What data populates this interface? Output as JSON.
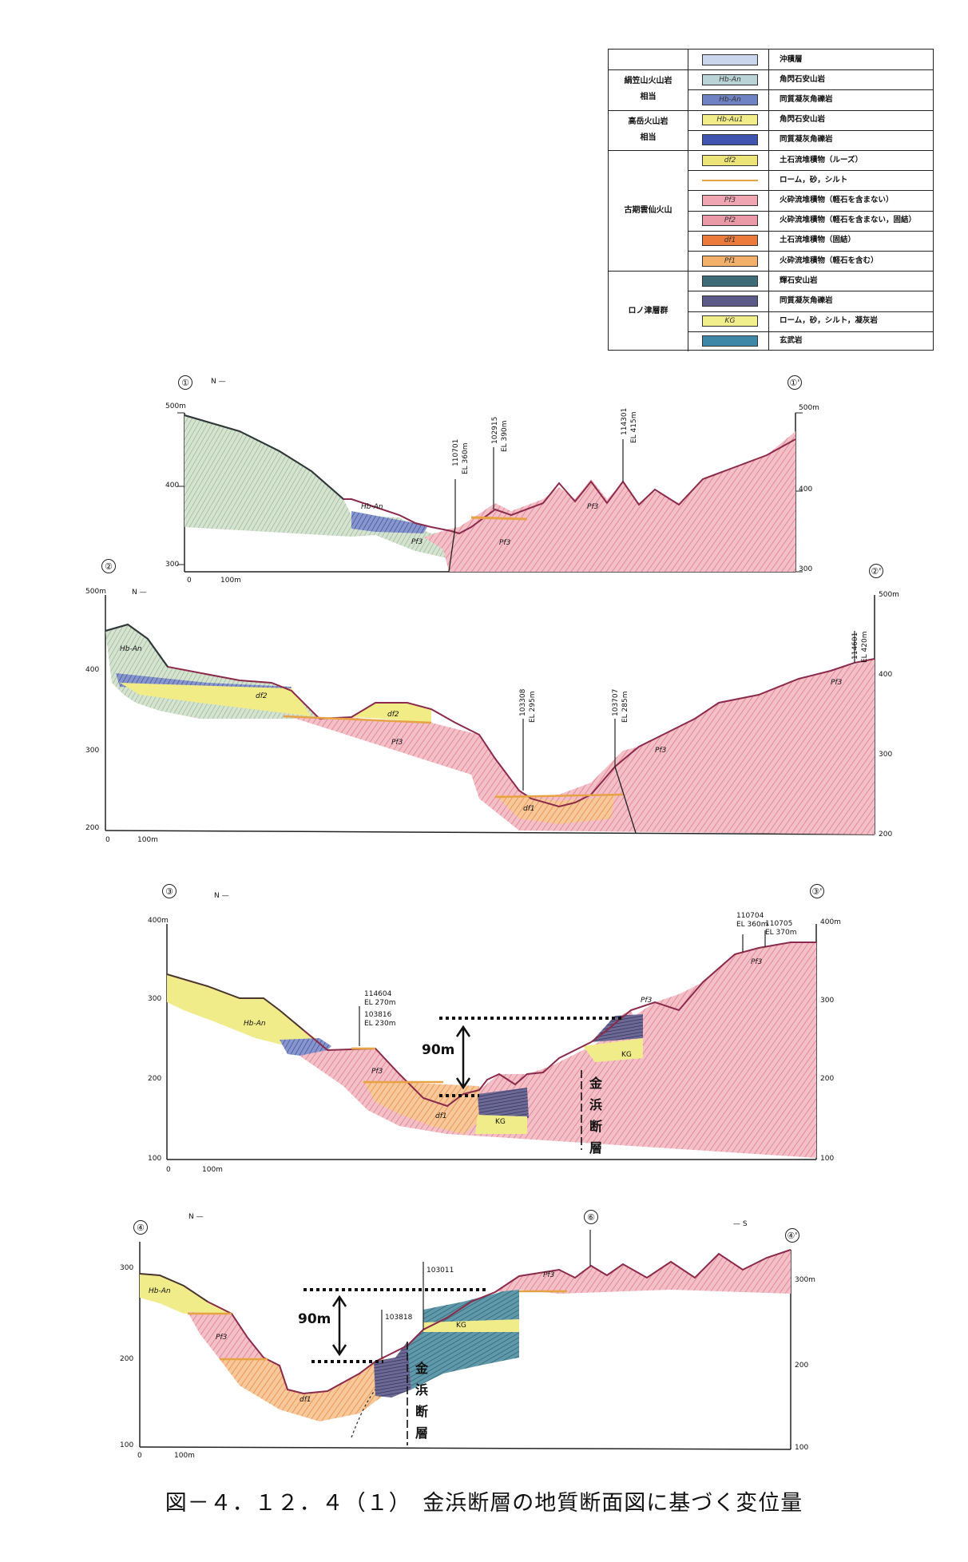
{
  "legend": {
    "groups": [
      {
        "label": "",
        "rows": 1
      },
      {
        "label_lines": [
          "絹笠山火山岩",
          "相当"
        ],
        "rows": 2
      },
      {
        "label_lines": [
          "高岳火山岩",
          "相当"
        ],
        "rows": 2
      },
      {
        "label_lines": [
          "古期雲仙火山"
        ],
        "rows": 6
      },
      {
        "label_lines": [
          "ロノ津層群"
        ],
        "rows": 4
      }
    ],
    "rows": [
      {
        "code": "",
        "color": "#c9d6ec",
        "desc": "沖積層"
      },
      {
        "code": "Hb-An",
        "color": "#b9d3d6",
        "desc": "角閃石安山岩"
      },
      {
        "code": "Hb-An",
        "color": "#6f82c4",
        "desc": "同質凝灰角礫岩"
      },
      {
        "code": "Hb-Au1",
        "color": "#f1ee8a",
        "desc": "角閃石安山岩"
      },
      {
        "code": "",
        "color": "#3f55b0",
        "desc": "同質凝灰角礫岩"
      },
      {
        "code": "df2",
        "color": "#ece478",
        "desc": "土石流堆積物（ルーズ）"
      },
      {
        "code": "",
        "color": "#e7a244",
        "desc": "ローム，砂，シルト",
        "line": true
      },
      {
        "code": "Pf3",
        "color": "#f0a6b2",
        "desc": "火砕流堆積物（軽石を含まない）"
      },
      {
        "code": "Pf2",
        "color": "#e99aa6",
        "desc": "火砕流堆積物（軽石を含まない，固結）"
      },
      {
        "code": "df1",
        "color": "#ec7a3a",
        "desc": "土石流堆積物（固結）"
      },
      {
        "code": "Pf1",
        "color": "#f2b06a",
        "desc": "火砕流堆積物（軽石を含む）"
      },
      {
        "code": "",
        "color": "#3d6e78",
        "desc": "輝石安山岩"
      },
      {
        "code": "",
        "color": "#5c5a86",
        "desc": "同質凝灰角礫岩"
      },
      {
        "code": "KG",
        "color": "#f1ef8c",
        "desc": "ローム，砂，シルト，凝灰岩"
      },
      {
        "code": "",
        "color": "#3f87a6",
        "desc": "玄武岩"
      }
    ]
  },
  "sections": [
    {
      "id": "①",
      "id_end": "①'",
      "north": "N —",
      "elev_left": [
        "500m",
        "400",
        "300"
      ],
      "elev_right": [
        "500m",
        "400",
        "300"
      ],
      "scale": [
        "0",
        "100m"
      ],
      "borings": [
        {
          "id": "110701",
          "el": "EL 360m"
        },
        {
          "id": "102915",
          "el": "EL 390m"
        },
        {
          "id": "114301",
          "el": "EL 415m"
        }
      ],
      "labels": [
        "Pf3",
        "Pf3",
        "Pf3",
        "Hb-An"
      ]
    },
    {
      "id": "②",
      "id_end": "②'",
      "north": "N —",
      "elev_left": [
        "500m",
        "400",
        "300",
        "200"
      ],
      "elev_right": [
        "500m",
        "400",
        "300",
        "200"
      ],
      "scale": [
        "0",
        "100m"
      ],
      "borings": [
        {
          "id": "103308",
          "el": "EL 295m"
        },
        {
          "id": "103707",
          "el": "EL 285m"
        },
        {
          "id": "114601",
          "el": "EL 420m"
        }
      ],
      "labels": [
        "Hb-An",
        "df2",
        "df2",
        "Pf3",
        "Pf3",
        "df1",
        "Pf3"
      ]
    },
    {
      "id": "③",
      "id_end": "③'",
      "north": "N —",
      "elev_left": [
        "400m",
        "300",
        "200",
        "100"
      ],
      "elev_right": [
        "400m",
        "300",
        "200",
        "100"
      ],
      "scale": [
        "0",
        "100m"
      ],
      "borings": [
        {
          "id": "114604",
          "el": "EL 270m"
        },
        {
          "id": "103816",
          "el": "EL 230m"
        },
        {
          "id": "110704",
          "el": "EL 360m"
        },
        {
          "id": "110705",
          "el": "EL 370m"
        }
      ],
      "labels": [
        "Hb-An",
        "Pf3",
        "df1",
        "KG",
        "KG",
        "Pf3",
        "Pf3"
      ],
      "offset": "90m",
      "fault": [
        "金",
        "浜",
        "断",
        "層"
      ]
    },
    {
      "id": "④",
      "id_end": "④'",
      "north": "N —",
      "south": "— S",
      "mark": "⑥",
      "elev_left": [
        "300",
        "200",
        "100"
      ],
      "elev_right": [
        "300m",
        "200",
        "100"
      ],
      "scale": [
        "0",
        "100m"
      ],
      "borings": [
        {
          "id": "103011",
          "el": ""
        },
        {
          "id": "103818",
          "el": ""
        }
      ],
      "labels": [
        "Hb-An",
        "Pf3",
        "df1",
        "KG",
        "Pf3"
      ],
      "offset": "90m",
      "fault": [
        "金",
        "浜",
        "断",
        "層"
      ]
    }
  ],
  "caption": "図－４．１２．４（１）　金浜断層の地質断面図に基づく変位量"
}
